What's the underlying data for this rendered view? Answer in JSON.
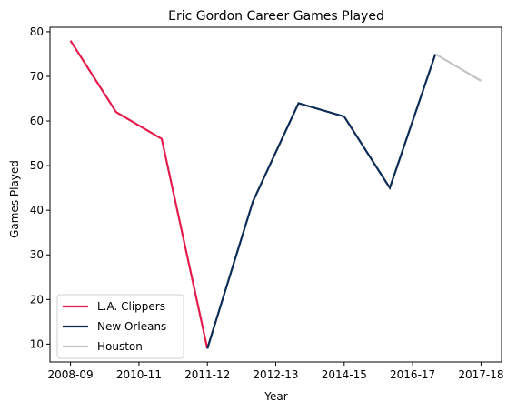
{
  "chart_data": {
    "type": "line",
    "title": "Eric Gordon Career Games Played",
    "xlabel": "Year",
    "ylabel": "Games Played",
    "ylim": [
      6,
      81
    ],
    "yticks": [
      10,
      20,
      30,
      40,
      50,
      60,
      70,
      80
    ],
    "x_tick_labels": [
      "2008-09",
      "2010-11",
      "2011-12",
      "2012-13",
      "2014-15",
      "2016-17",
      "2017-18"
    ],
    "legend_position": "lower-left",
    "grid": false,
    "series": [
      {
        "name": "L.A. Clippers",
        "color": "#e31c4d",
        "points": [
          [
            0,
            78
          ],
          [
            1,
            62
          ],
          [
            2,
            56
          ],
          [
            3,
            9
          ]
        ]
      },
      {
        "name": "New Orleans",
        "color": "#0c2c56",
        "points": [
          [
            3,
            9
          ],
          [
            4,
            42
          ],
          [
            5,
            64
          ],
          [
            6,
            61
          ],
          [
            7,
            45
          ],
          [
            8,
            75
          ]
        ]
      },
      {
        "name": "Houston",
        "color": "#c4c4c4",
        "points": [
          [
            8,
            75
          ],
          [
            9,
            69
          ]
        ]
      }
    ]
  }
}
